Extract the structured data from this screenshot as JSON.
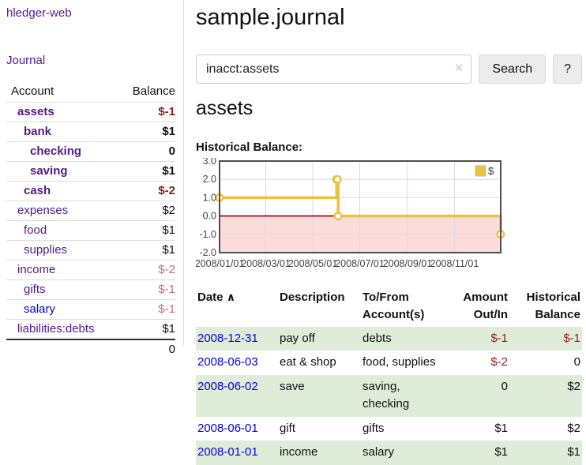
{
  "colors": {
    "purple": "#551a8b",
    "blue": "#0000e0",
    "negstrong": "#8f1d1d",
    "negsoft": "#bd7581",
    "green": "#dfecd8",
    "gold": "#edc240",
    "pink": "#fcdbdb",
    "zeroline": "#9b0000",
    "grid": "#dcdcdc",
    "borderc": "#4f4f4f",
    "rowline": "#dddddd"
  },
  "sidebar": {
    "brand": "hledger-web",
    "nav_journal": "Journal",
    "account_header": "Account",
    "balance_header": "Balance",
    "accounts": [
      {
        "name": "assets",
        "indent": 1,
        "strong": true,
        "balance": "$-1",
        "negative": true
      },
      {
        "name": "bank",
        "indent": 2,
        "strong": true,
        "balance": "$1",
        "negative": false
      },
      {
        "name": "checking",
        "indent": 3,
        "strong": true,
        "balance": "0",
        "negative": false
      },
      {
        "name": "saving",
        "indent": 3,
        "strong": true,
        "balance": "$1",
        "negative": false
      },
      {
        "name": "cash",
        "indent": 2,
        "strong": true,
        "balance": "$-2",
        "negative": true
      },
      {
        "name": "expenses",
        "indent": 1,
        "strong": false,
        "balance": "$2",
        "negative": false
      },
      {
        "name": "food",
        "indent": 2,
        "strong": false,
        "balance": "$1",
        "negative": false
      },
      {
        "name": "supplies",
        "indent": 2,
        "strong": false,
        "balance": "$1",
        "negative": false
      },
      {
        "name": "income",
        "indent": 1,
        "strong": false,
        "balance": "$-2",
        "negative": true
      },
      {
        "name": "gifts",
        "indent": 2,
        "strong": false,
        "balance": "$-1",
        "negative": true
      },
      {
        "name": "salary",
        "indent": 2,
        "strong": false,
        "balance": "$-1",
        "negative": true,
        "blue": true
      },
      {
        "name": "liabilities:debts",
        "indent": 1,
        "strong": false,
        "balance": "$1",
        "negative": false
      }
    ],
    "total": "0"
  },
  "header": {
    "title": "sample.journal"
  },
  "search": {
    "value": "inacct:assets",
    "clear_icon": "✕",
    "button_label": "Search",
    "help_label": "?"
  },
  "register": {
    "heading": "assets",
    "chart_label": "Historical Balance:",
    "table": {
      "headers": [
        "Date",
        "Description",
        "To/From Account(s)",
        "Amount Out/In",
        "Historical Balance"
      ],
      "sort_icon": "∧",
      "rows": [
        {
          "date": "2008-12-31",
          "description": "pay off",
          "accounts": "debts",
          "amount": "$-1",
          "amount_negative": true,
          "balance": "$-1",
          "balance_negative": true
        },
        {
          "date": "2008-06-03",
          "description": "eat & shop",
          "accounts": "food, supplies",
          "amount": "$-2",
          "amount_negative": true,
          "balance": "0",
          "balance_negative": false
        },
        {
          "date": "2008-06-02",
          "description": "save",
          "accounts": "saving, checking",
          "amount": "0",
          "amount_negative": false,
          "balance": "$2",
          "balance_negative": false
        },
        {
          "date": "2008-06-01",
          "description": "gift",
          "accounts": "gifts",
          "amount": "$1",
          "amount_negative": false,
          "balance": "$2",
          "balance_negative": false
        },
        {
          "date": "2008-01-01",
          "description": "income",
          "accounts": "salary",
          "amount": "$1",
          "amount_negative": false,
          "balance": "$1",
          "balance_negative": false
        }
      ]
    }
  },
  "chart_data": {
    "type": "line",
    "style": "steps",
    "title": "Historical Balance:",
    "series": [
      {
        "name": "$",
        "points": [
          [
            "2008-01-01",
            1
          ],
          [
            "2008-06-01",
            2
          ],
          [
            "2008-06-02",
            2
          ],
          [
            "2008-06-03",
            0
          ],
          [
            "2008-12-31",
            -1
          ]
        ]
      }
    ],
    "x_ticks": [
      "2008/01/01",
      "2008/03/01",
      "2008/05/01",
      "2008/07/01",
      "2008/09/01",
      "2008/11/01"
    ],
    "y_ticks": [
      3.0,
      2.0,
      1.0,
      0.0,
      -1.0,
      -2.0
    ],
    "xlim": [
      "2008-01-01",
      "2008-12-31"
    ],
    "ylim": [
      -2,
      3
    ],
    "grid": true,
    "legend_position": "top-right",
    "negative_region": true
  }
}
